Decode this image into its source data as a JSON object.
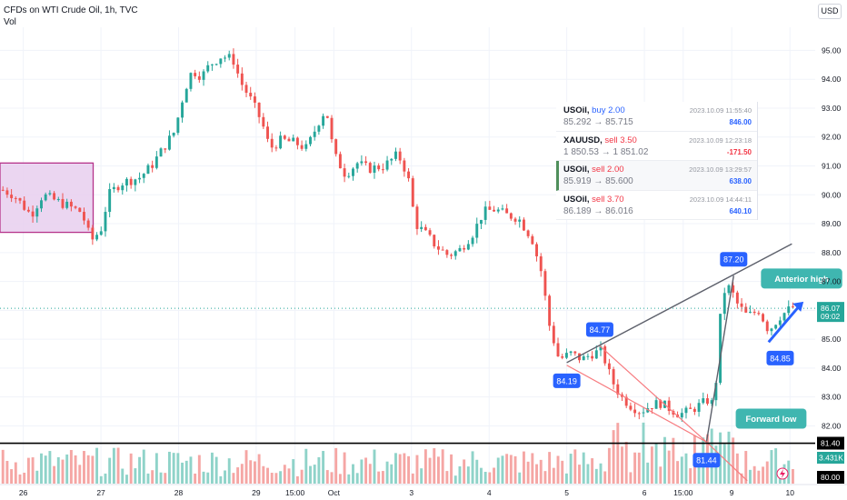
{
  "header": {
    "title": "CFDs on WTI Crude Oil, 1h, TVC",
    "volume_label": "Vol",
    "currency_button": "USD"
  },
  "trades": [
    {
      "symbol": "USOil,",
      "side": "buy 2.00",
      "side_type": "buy",
      "prices": "85.292 → 85.715",
      "time": "2023.10.09 11:55:40",
      "pnl": "846.00",
      "pnl_sign": "pos",
      "selected": false
    },
    {
      "symbol": "XAUUSD,",
      "side": "sell 3.50",
      "side_type": "sell",
      "prices": "1 850.53 → 1 851.02",
      "time": "2023.10.09 12:23:18",
      "pnl": "-171.50",
      "pnl_sign": "neg",
      "selected": false
    },
    {
      "symbol": "USOil,",
      "side": "sell 2.00",
      "side_type": "sell",
      "prices": "85.919 → 85.600",
      "time": "2023.10.09 13:29:57",
      "pnl": "638.00",
      "pnl_sign": "pos",
      "selected": true
    },
    {
      "symbol": "USOil,",
      "side": "sell 3.70",
      "side_type": "sell",
      "prices": "86.189 → 86.016",
      "time": "2023.10.09 14:44:11",
      "pnl": "640.10",
      "pnl_sign": "pos",
      "selected": false
    }
  ],
  "colors": {
    "up": "#26a69a",
    "down": "#ef5350",
    "vol_up": "#8fd3c9",
    "vol_down": "#f5a6a4",
    "accent": "#2962ff",
    "annotation_teal": "#3fb6b0",
    "trend_red": "#f77c80",
    "box_fill": "#e8cfee",
    "box_border": "#b5338a"
  },
  "chart_data": {
    "type": "candlestick",
    "symbol": "CFDs on WTI Crude Oil, 1h, TVC",
    "y_axis": {
      "ticks": [
        "95.00",
        "94.00",
        "93.00",
        "92.00",
        "91.00",
        "90.00",
        "89.00",
        "88.00",
        "87.00",
        "86.00",
        "85.00",
        "84.00",
        "83.00",
        "82.00"
      ],
      "range": [
        80.0,
        95.8
      ]
    },
    "x_axis": {
      "ticks": [
        {
          "label": "26",
          "x": 0
        },
        {
          "label": "27",
          "x": 4
        },
        {
          "label": "28",
          "x": 8
        },
        {
          "label": "29",
          "x": 12
        },
        {
          "label": "15:00",
          "x": 14
        },
        {
          "label": "Oct",
          "x": 16
        },
        {
          "label": "3",
          "x": 20
        },
        {
          "label": "4",
          "x": 24
        },
        {
          "label": "5",
          "x": 28
        },
        {
          "label": "6",
          "x": 32
        },
        {
          "label": "15:00",
          "x": 34
        },
        {
          "label": "9",
          "x": 36.5
        },
        {
          "label": "10",
          "x": 39.5
        }
      ],
      "range": [
        -1.2,
        40.8
      ]
    },
    "price_path": [
      [
        -1.2,
        90.2
      ],
      [
        -0.5,
        90.0
      ],
      [
        0.4,
        89.3
      ],
      [
        1.0,
        90.0
      ],
      [
        2.0,
        89.7
      ],
      [
        3.0,
        89.4
      ],
      [
        3.5,
        88.4
      ],
      [
        4.0,
        88.8
      ],
      [
        4.4,
        90.0
      ],
      [
        5.0,
        90.4
      ],
      [
        6.0,
        90.6
      ],
      [
        6.6,
        91.0
      ],
      [
        7.2,
        91.6
      ],
      [
        7.8,
        92.2
      ],
      [
        8.3,
        93.6
      ],
      [
        8.7,
        94.3
      ],
      [
        9.2,
        94.1
      ],
      [
        9.6,
        94.5
      ],
      [
        10.2,
        94.8
      ],
      [
        10.8,
        94.7
      ],
      [
        11.2,
        93.9
      ],
      [
        11.8,
        93.2
      ],
      [
        12.3,
        92.5
      ],
      [
        12.7,
        91.6
      ],
      [
        13.3,
        91.9
      ],
      [
        14.0,
        91.8
      ],
      [
        14.6,
        91.6
      ],
      [
        15.2,
        92.5
      ],
      [
        15.6,
        93.0
      ],
      [
        16.0,
        91.4
      ],
      [
        16.6,
        90.7
      ],
      [
        17.2,
        91.1
      ],
      [
        17.8,
        90.9
      ],
      [
        18.6,
        91.0
      ],
      [
        19.3,
        91.4
      ],
      [
        19.8,
        90.7
      ],
      [
        20.2,
        89.0
      ],
      [
        20.8,
        88.6
      ],
      [
        21.3,
        88.2
      ],
      [
        21.9,
        87.9
      ],
      [
        22.5,
        88.1
      ],
      [
        23.2,
        88.7
      ],
      [
        23.7,
        89.4
      ],
      [
        24.3,
        89.5
      ],
      [
        24.9,
        89.3
      ],
      [
        25.5,
        89.2
      ],
      [
        26.2,
        88.5
      ],
      [
        26.7,
        87.3
      ],
      [
        27.1,
        85.5
      ],
      [
        27.6,
        84.3
      ],
      [
        28.2,
        84.5
      ],
      [
        28.8,
        84.3
      ],
      [
        29.3,
        84.5
      ],
      [
        29.8,
        84.6
      ],
      [
        30.3,
        83.6
      ],
      [
        30.8,
        83.0
      ],
      [
        31.3,
        82.7
      ],
      [
        31.8,
        82.5
      ],
      [
        32.3,
        82.7
      ],
      [
        32.8,
        82.8
      ],
      [
        33.3,
        82.6
      ],
      [
        33.8,
        82.4
      ],
      [
        34.3,
        82.5
      ],
      [
        34.8,
        82.7
      ],
      [
        35.3,
        82.9
      ],
      [
        35.6,
        82.7
      ],
      [
        36.0,
        86.6
      ],
      [
        36.4,
        86.8
      ],
      [
        36.8,
        86.2
      ],
      [
        37.3,
        85.8
      ],
      [
        37.9,
        86.0
      ],
      [
        38.4,
        85.3
      ],
      [
        39.0,
        85.8
      ],
      [
        39.6,
        86.1
      ]
    ],
    "box": {
      "x": [
        -1.2,
        3.6
      ],
      "y": [
        88.7,
        91.1
      ]
    },
    "trendlines": [
      {
        "name": "resistance",
        "from": [
          28.0,
          84.19
        ],
        "to": [
          39.6,
          88.3
        ],
        "color": "gray"
      },
      {
        "name": "rally",
        "from": [
          35.2,
          81.44
        ],
        "to": [
          36.6,
          87.2
        ],
        "color": "gray"
      },
      {
        "name": "fall-1",
        "from": [
          28.0,
          84.1
        ],
        "to": [
          35.2,
          81.44
        ],
        "color": "red"
      },
      {
        "name": "fall-2",
        "from": [
          29.7,
          84.77
        ],
        "to": [
          35.2,
          81.44
        ],
        "color": "red"
      },
      {
        "name": "fall-3",
        "from": [
          35.2,
          81.44
        ],
        "to": [
          37.3,
          80.1
        ],
        "color": "red"
      }
    ],
    "horizontal_lines": [
      {
        "value": 81.4
      }
    ],
    "current_price": {
      "label": "86.07",
      "sub": "09:02",
      "value": 86.07
    },
    "level_labels": [
      {
        "label": "81.40",
        "value": 81.4
      },
      {
        "label": "80.00",
        "value": 80.0
      }
    ],
    "volume_label": "3.431K",
    "price_markers": [
      {
        "label": "84.19",
        "x": 28.0,
        "y": 84.19
      },
      {
        "label": "84.77",
        "x": 29.7,
        "y": 84.77
      },
      {
        "label": "81.44",
        "x": 35.2,
        "y": 81.44
      },
      {
        "label": "87.20",
        "x": 36.6,
        "y": 87.2
      },
      {
        "label": "84.85",
        "x": 38.2,
        "y": 84.85
      }
    ],
    "annotations": [
      {
        "label": "Anterior high",
        "x": 38.1,
        "y": 87.1
      },
      {
        "label": "Forward low",
        "x": 36.8,
        "y": 82.25
      }
    ]
  }
}
